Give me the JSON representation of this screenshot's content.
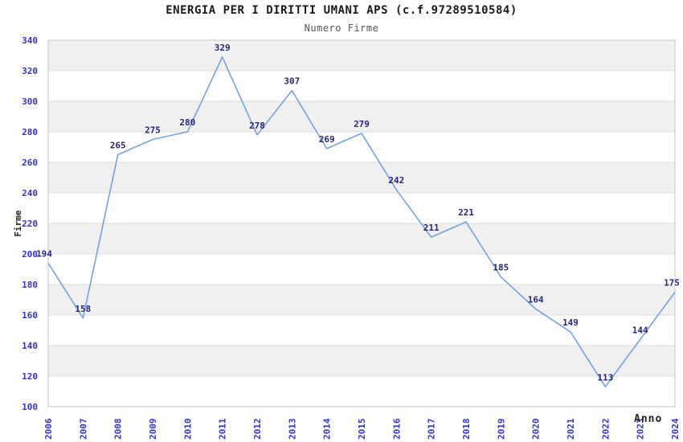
{
  "title": "ENERGIA PER I DIRITTI UMANI APS (c.f.97289510584)",
  "subtitle": "Numero Firme",
  "chart_data": {
    "type": "line",
    "title": "ENERGIA PER I DIRITTI UMANI APS (c.f.97289510584)",
    "subtitle": "Numero Firme",
    "xlabel": "Anno",
    "ylabel": "Firme",
    "categories": [
      "2006",
      "2007",
      "2008",
      "2009",
      "2010",
      "2011",
      "2012",
      "2013",
      "2014",
      "2015",
      "2016",
      "2017",
      "2018",
      "2019",
      "2020",
      "2021",
      "2022",
      "2023",
      "2024"
    ],
    "series": [
      {
        "name": "Numero Firme",
        "values": [
          194,
          158,
          265,
          275,
          280,
          329,
          278,
          307,
          269,
          279,
          242,
          211,
          221,
          185,
          164,
          149,
          113,
          144,
          175
        ]
      }
    ],
    "ylim": [
      100,
      340
    ],
    "ytick_step": 20,
    "grid": "horizontal-lines-with-alternating-bands",
    "legend_position": "none",
    "point_labels_visible": true,
    "colors": {
      "line": "#70a3e8",
      "data_label": "#26267d",
      "tick_label": "#3232dd",
      "band_fill": "#f0f0f0",
      "gridline": "#dcdcdc",
      "plot_border": "#c6c6c6",
      "title": "#1a1a1a",
      "subtitle": "#555555",
      "axis_title": "#222222",
      "background": "#ffffff"
    }
  }
}
